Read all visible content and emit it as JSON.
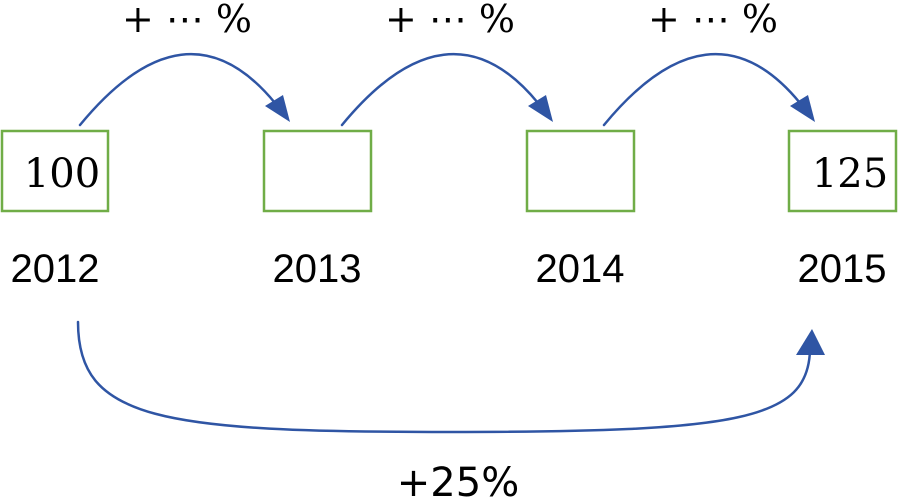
{
  "years": [
    "2012",
    "2013",
    "2014",
    "2015"
  ],
  "box_values": [
    "100",
    "",
    "",
    "125"
  ],
  "step_changes": [
    "+ ⋯ %",
    "+ ⋯ %",
    "+ ⋯ %"
  ],
  "total_change": "+25%",
  "colors": {
    "box_border": "#70ad47",
    "arrow": "#2f55a4",
    "text": "#000000"
  }
}
